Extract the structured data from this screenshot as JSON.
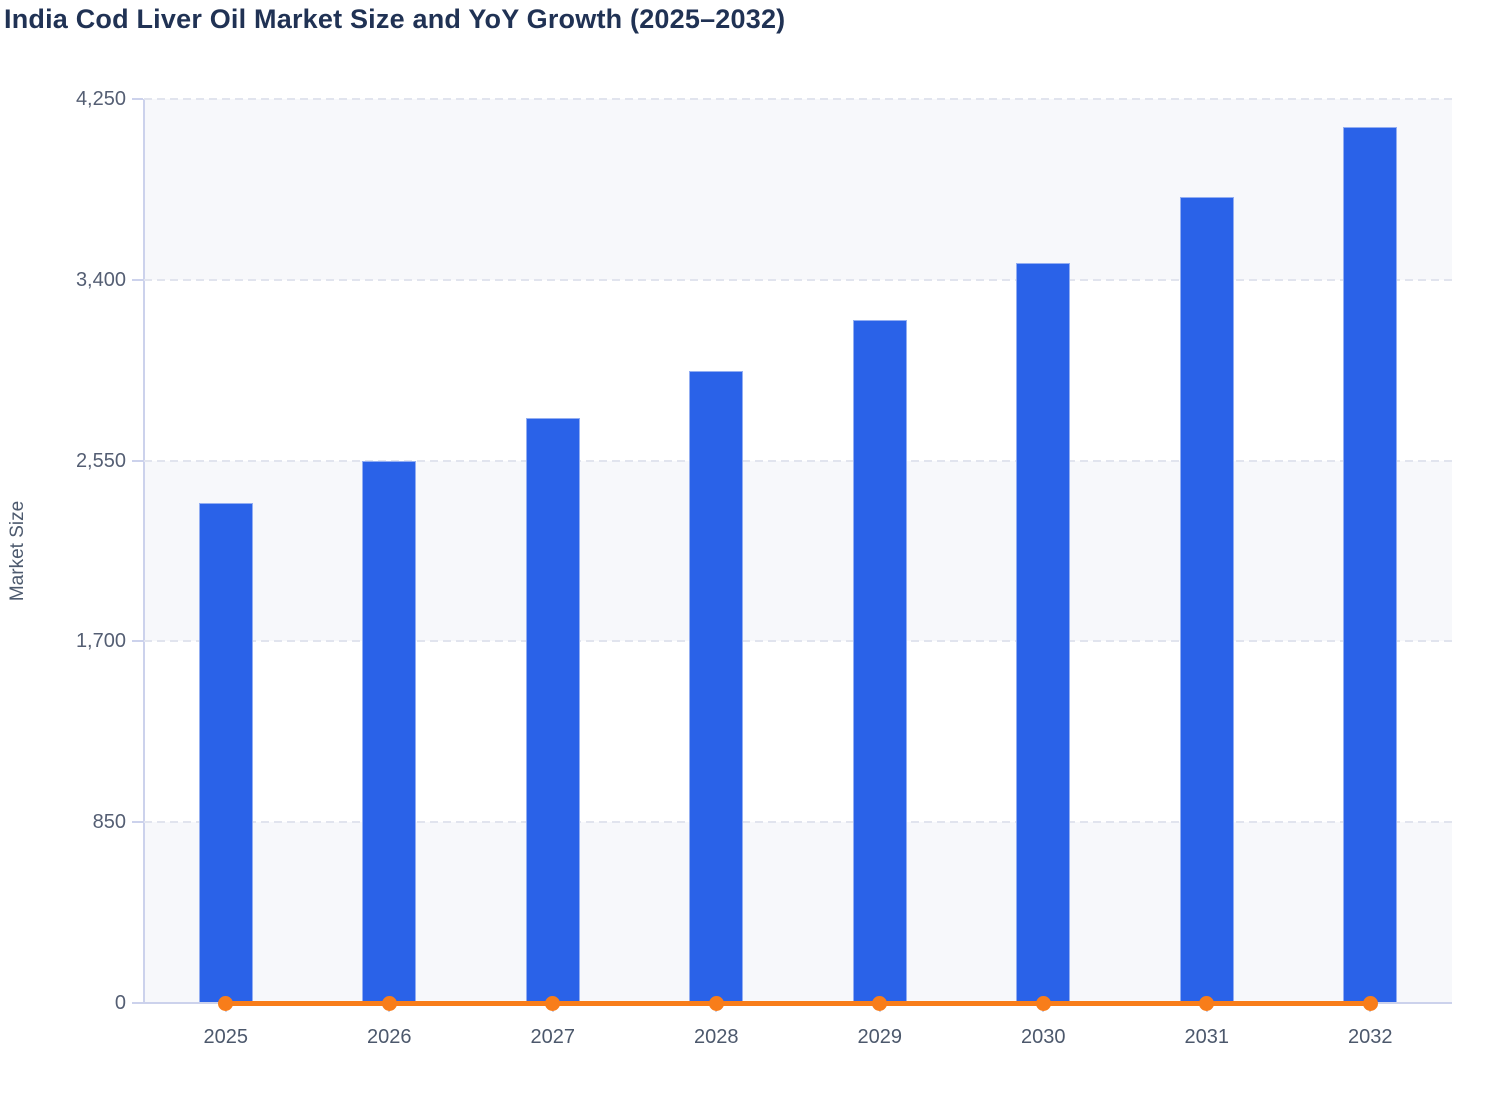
{
  "header": {
    "title": "India Cod Liver Oil Market Size and YoY Growth (2025–2032)"
  },
  "chart_data": {
    "type": "bar",
    "title": "India Cod Liver Oil Market Size and YoY Growth (2025–2032)",
    "categories": [
      "2025",
      "2026",
      "2027",
      "2028",
      "2029",
      "2030",
      "2031",
      "2032"
    ],
    "series": [
      {
        "name": "Market Size",
        "type": "bar",
        "color": "#2a62e8",
        "values": [
          2350,
          2550,
          2750,
          2970,
          3210,
          3480,
          3790,
          4120
        ]
      },
      {
        "name": "YoY Growth",
        "type": "line",
        "color": "#f87d1a",
        "values": [
          0,
          0,
          0,
          0,
          0,
          0,
          0,
          0
        ]
      }
    ],
    "xlabel": "",
    "ylabel": "Market Size",
    "ylim": [
      0,
      4250
    ],
    "yticks": [
      0,
      850,
      1700,
      2550,
      3400,
      4250
    ],
    "ytick_labels": [
      "0",
      "850",
      "1,700",
      "2,550",
      "3,400",
      "4,250"
    ],
    "grid": "horizontal-dashed",
    "plot_bands": "alternating gray/white from top",
    "legend_position": "none"
  },
  "colors": {
    "bar_fill": "#2a62e8",
    "bar_border": "#93aef2",
    "line_color": "#f87d1a",
    "band_gray": "#f7f8fb",
    "gridline": "#e1e4ee",
    "axis_line": "#ccd2ec",
    "tick_label": "#545e73",
    "title": "#203254"
  }
}
